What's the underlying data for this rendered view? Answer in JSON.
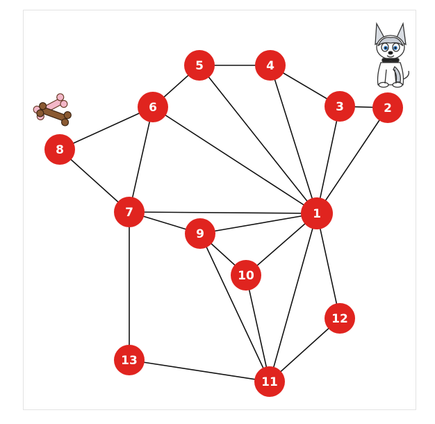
{
  "graph": {
    "node_color": "#e0241f",
    "label_color": "#ffffff",
    "edge_color": "#111111",
    "nodes": [
      {
        "id": "1",
        "label": "1"
      },
      {
        "id": "2",
        "label": "2"
      },
      {
        "id": "3",
        "label": "3"
      },
      {
        "id": "4",
        "label": "4"
      },
      {
        "id": "5",
        "label": "5"
      },
      {
        "id": "6",
        "label": "6"
      },
      {
        "id": "7",
        "label": "7"
      },
      {
        "id": "8",
        "label": "8"
      },
      {
        "id": "9",
        "label": "9"
      },
      {
        "id": "10",
        "label": "10"
      },
      {
        "id": "11",
        "label": "11"
      },
      {
        "id": "12",
        "label": "12"
      },
      {
        "id": "13",
        "label": "13"
      }
    ],
    "edges": [
      [
        "5",
        "4"
      ],
      [
        "4",
        "3"
      ],
      [
        "3",
        "2"
      ],
      [
        "5",
        "6"
      ],
      [
        "6",
        "8"
      ],
      [
        "6",
        "7"
      ],
      [
        "8",
        "7"
      ],
      [
        "5",
        "1"
      ],
      [
        "4",
        "1"
      ],
      [
        "3",
        "1"
      ],
      [
        "2",
        "1"
      ],
      [
        "6",
        "1"
      ],
      [
        "7",
        "1"
      ],
      [
        "9",
        "1"
      ],
      [
        "10",
        "1"
      ],
      [
        "11",
        "1"
      ],
      [
        "12",
        "1"
      ],
      [
        "7",
        "9"
      ],
      [
        "9",
        "10"
      ],
      [
        "9",
        "11"
      ],
      [
        "10",
        "11"
      ],
      [
        "7",
        "13"
      ],
      [
        "13",
        "11"
      ],
      [
        "12",
        "11"
      ]
    ]
  },
  "decorations": {
    "dog": {
      "icon": "cartoon-dog-icon"
    },
    "bones": {
      "icon": "dog-bones-icon"
    }
  }
}
